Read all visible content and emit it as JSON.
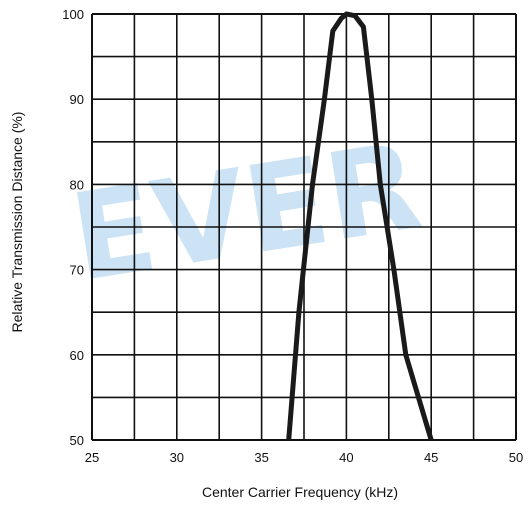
{
  "watermark": "EVER",
  "chart_data": {
    "type": "line",
    "title": "",
    "xlabel": "Center Carrier Frequency (kHz)",
    "ylabel": "Relative Transmission Distance (%)",
    "xlim": [
      25,
      50
    ],
    "ylim": [
      50,
      100
    ],
    "grid": true,
    "x_ticks": [
      "25",
      "30",
      "35",
      "40",
      "45",
      "50"
    ],
    "y_ticks": [
      "50",
      "60",
      "70",
      "80",
      "90",
      "100"
    ],
    "colors": {
      "line": "#1a1a1a",
      "grid": "#111111",
      "watermark": "#6aaee3"
    },
    "series": [
      {
        "x": [
          36.6,
          37.2,
          38.0,
          38.7,
          39.2,
          39.7,
          40.0,
          40.5,
          41.0,
          41.5,
          42.0,
          42.8,
          43.5,
          44.4,
          45.0
        ],
        "y": [
          50,
          65,
          80,
          90,
          98,
          99.5,
          100,
          99.8,
          98.5,
          90,
          80,
          70,
          60,
          54,
          50
        ]
      }
    ]
  }
}
